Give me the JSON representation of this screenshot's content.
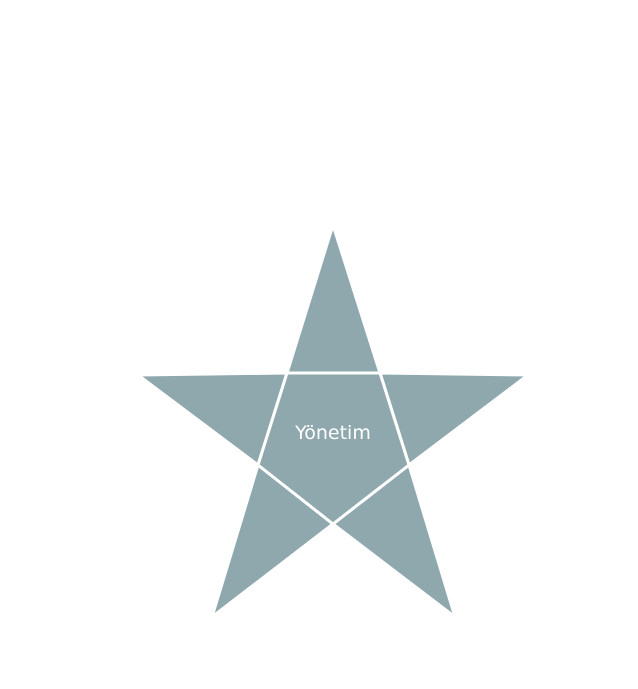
{
  "diagram": {
    "type": "star",
    "center_label": "Yönetim",
    "segments": [
      "top-point",
      "right-point",
      "bottom-right-point",
      "bottom-left-point",
      "left-point",
      "center-pentagon"
    ]
  },
  "colors": {
    "background": "#ffffff",
    "star_fill": "#8FA8AE",
    "divider": "#ffffff",
    "label": "#ffffff"
  }
}
